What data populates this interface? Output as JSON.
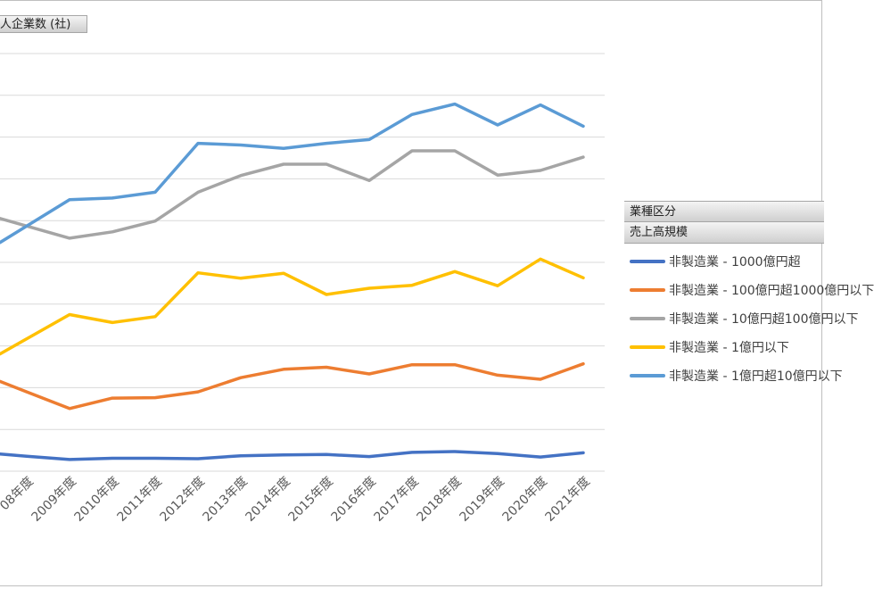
{
  "chart_data": {
    "type": "line",
    "title": "人企業数 (社)",
    "categories": [
      "08年度",
      "2009年度",
      "2010年度",
      "2011年度",
      "2012年度",
      "2013年度",
      "2014年度",
      "2015年度",
      "2016年度",
      "2017年度",
      "2018年度",
      "2019年度",
      "2020年度",
      "2021年度"
    ],
    "y_gridlines": 10,
    "grid": true,
    "legend_position": "right",
    "legend_headers": [
      "業種区分",
      "売上高規模"
    ],
    "series": [
      {
        "name": "非製造業 - 1000億円超",
        "color": "#4472c4",
        "values": [
          0.36,
          0.28,
          0.31,
          0.31,
          0.3,
          0.37,
          0.39,
          0.4,
          0.35,
          0.45,
          0.47,
          0.42,
          0.34,
          0.44
        ]
      },
      {
        "name": "非製造業 - 100億円超1000億円以下",
        "color": "#ed7d31",
        "values": [
          1.9,
          1.5,
          1.75,
          1.76,
          1.9,
          2.24,
          2.44,
          2.49,
          2.33,
          2.55,
          2.55,
          2.3,
          2.2,
          2.57
        ]
      },
      {
        "name": "非製造業 - 10億円超100億円以下",
        "color": "#a5a5a5",
        "values": [
          5.87,
          5.58,
          5.73,
          5.99,
          6.68,
          7.08,
          7.35,
          7.35,
          6.96,
          7.67,
          7.67,
          7.09,
          7.2,
          7.52
        ]
      },
      {
        "name": "非製造業 - 1億円以下",
        "color": "#ffc000",
        "values": [
          3.17,
          3.75,
          3.56,
          3.7,
          4.75,
          4.62,
          4.74,
          4.23,
          4.38,
          4.45,
          4.78,
          4.44,
          5.08,
          4.63
        ]
      },
      {
        "name": "非製造業 - 1億円超10億円以下",
        "color": "#5b9bd5",
        "values": [
          5.87,
          6.5,
          6.54,
          6.68,
          7.85,
          7.81,
          7.73,
          7.85,
          7.94,
          8.54,
          8.79,
          8.29,
          8.77,
          8.26
        ]
      }
    ]
  }
}
